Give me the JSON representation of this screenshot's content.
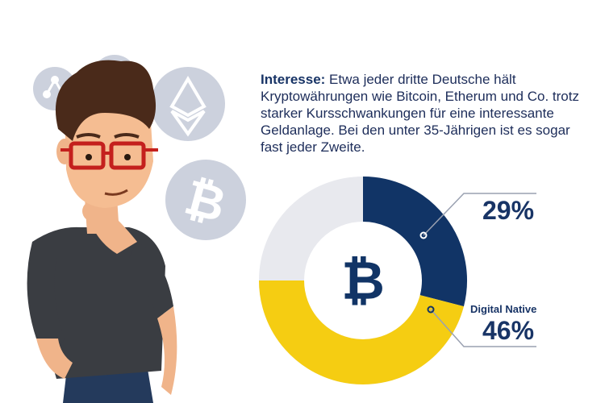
{
  "text": {
    "lead": "Interesse:",
    "body": " Etwa jeder dritte Deutsche hält Kryptowährungen wie Bitcoin, Etherum und Co. trotz starker Kursschwankungen für eine interessante Geldanlage. Bei den unter 35-Jährigen ist es sogar fast jeder Zweite."
  },
  "chart_data": {
    "type": "pie",
    "series": [
      {
        "name": "",
        "value": 29,
        "label": "29%",
        "color": "#113466"
      },
      {
        "name": "Digital Native",
        "value": 46,
        "label": "46%",
        "color": "#f5cd12"
      }
    ],
    "center_icon": "bitcoin-icon"
  },
  "colors": {
    "navy": "#113466",
    "yellow": "#f5cd12",
    "ring_bg": "#e8e9ee",
    "coin_bg": "#ccd1dd"
  },
  "icons": [
    "ripple-icon",
    "litecoin-icon",
    "ethereum-icon",
    "bitcoin-icon"
  ]
}
